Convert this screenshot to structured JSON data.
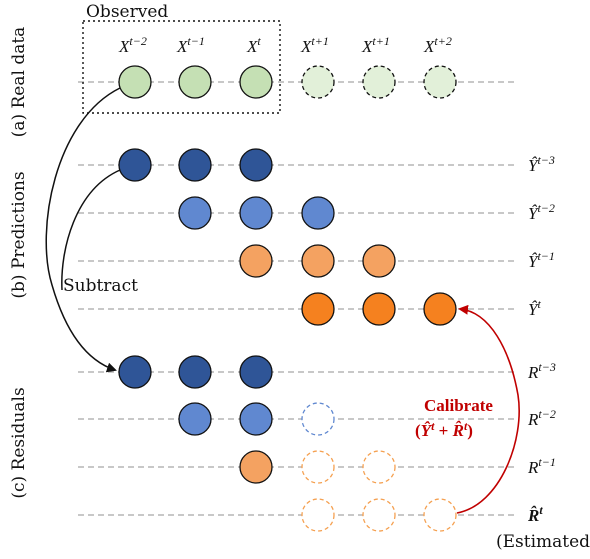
{
  "diagram": {
    "observed_label": "Observed",
    "section_labels": {
      "real": "(a) Real data",
      "predictions": "(b) Predictions",
      "residuals": "(c) Residuals"
    },
    "subtract_label": "Subtract",
    "calibrate_label": "Calibrate",
    "calibrate_formula": "(Ŷᵗ + R̂ᵗ)",
    "estimated_label": "(Estimated)",
    "column_headers": [
      "X^{t−2}",
      "X^{t−1}",
      "X^{t}",
      "X^{t+1}",
      "X^{t+1}",
      "X^{t+2}"
    ],
    "row_labels": [
      "Ŷ^{t−3}",
      "Ŷ^{t−2}",
      "Ŷ^{t−1}",
      "Ŷ^{t}",
      "R^{t−3}",
      "R^{t−2}",
      "R^{t−1}",
      "R̂^{t}"
    ],
    "colors": {
      "green_fill": "#c5e0b4",
      "green_dashed_fill": "#e2f0d9",
      "dark_blue": "#2f5597",
      "light_blue": "#6088d0",
      "light_orange": "#f4a261",
      "orange": "#f5811f",
      "dashed_blue_stroke": "#6088d0",
      "dashed_orange_stroke": "#f5a050",
      "calibrate_red": "#c00000",
      "guide_gray": "#a6a6a6"
    }
  }
}
